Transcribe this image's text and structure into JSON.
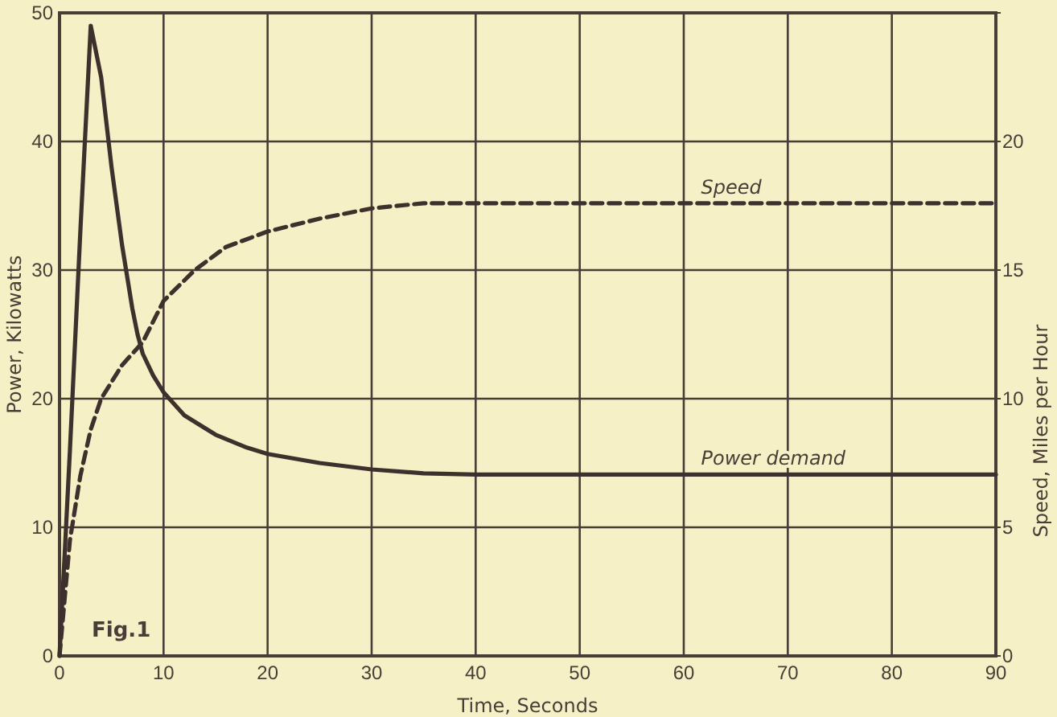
{
  "chart_data": {
    "type": "line",
    "xlabel": "Time, Seconds",
    "ylabel": "Power, Kilowatts",
    "y2label": "Speed, Miles per Hour",
    "xlim": [
      0,
      90
    ],
    "xticks": [
      0,
      10,
      20,
      30,
      40,
      50,
      60,
      70,
      80,
      90
    ],
    "ylim": [
      0,
      50
    ],
    "yticks": [
      0,
      10,
      20,
      30,
      40,
      50
    ],
    "y2lim": [
      0,
      25
    ],
    "y2ticks": [
      0,
      5,
      10,
      15,
      20
    ],
    "grid": true,
    "annotations": [
      "Fig.1"
    ],
    "series": [
      {
        "name": "Power demand",
        "color": "#3e302c",
        "line_style": "solid",
        "x": [
          0,
          1,
          2,
          3,
          4,
          5,
          6,
          7,
          7.5,
          8,
          9,
          10,
          12,
          15,
          18,
          20,
          25,
          30,
          35,
          40,
          50,
          60,
          70,
          80,
          90
        ],
        "values": [
          0,
          16,
          33,
          49,
          45,
          38,
          32,
          27,
          25,
          23.5,
          21.8,
          20.5,
          18.7,
          17.2,
          16.2,
          15.7,
          15,
          14.5,
          14.2,
          14.1,
          14.1,
          14.1,
          14.1,
          14.1,
          14.1
        ]
      },
      {
        "name": "Speed",
        "color": "#3e302c",
        "line_style": "dashed",
        "axis": "y2",
        "x": [
          0,
          1,
          2,
          3,
          4,
          6,
          8,
          10,
          13,
          16,
          20,
          25,
          30,
          35,
          40,
          50,
          60,
          70,
          80,
          90
        ],
        "values": [
          0,
          4.5,
          7,
          8.8,
          10,
          11.3,
          12.2,
          13.8,
          15,
          15.9,
          16.5,
          17,
          17.4,
          17.6,
          17.6,
          17.6,
          17.6,
          17.6,
          17.6,
          17.6
        ]
      }
    ]
  }
}
